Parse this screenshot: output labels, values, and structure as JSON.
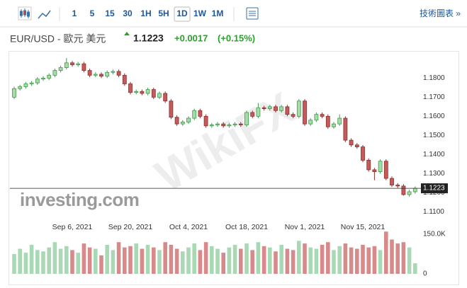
{
  "toolbar": {
    "intervals": [
      "1",
      "5",
      "15",
      "30",
      "1H",
      "5H",
      "1D",
      "1W",
      "1M"
    ],
    "selected": 6,
    "link": "技術圖表 »"
  },
  "header": {
    "pair": "EUR/USD - 歐元 美元",
    "price": "1.1223",
    "change": "+0.0017",
    "change_pct": "(+0.15%)"
  },
  "chart_data": {
    "type": "candlestick",
    "watermark": "investing.com",
    "watermark2": "WikiFX",
    "categories": [
      null,
      null,
      null,
      null,
      null,
      null,
      null,
      null,
      null,
      null,
      "Sep 6, 2021",
      null,
      null,
      null,
      null,
      null,
      null,
      null,
      null,
      null,
      "Sep 20, 2021",
      null,
      null,
      null,
      null,
      null,
      null,
      null,
      null,
      null,
      "Oct 4, 2021",
      null,
      null,
      null,
      null,
      null,
      null,
      null,
      null,
      null,
      "Oct 18, 2021",
      null,
      null,
      null,
      null,
      null,
      null,
      null,
      null,
      null,
      "Nov 1, 2021",
      null,
      null,
      null,
      null,
      null,
      null,
      null,
      null,
      null,
      "Nov 15, 2021",
      null,
      null,
      null,
      null,
      null,
      null,
      null,
      null,
      null
    ],
    "open": [
      1.17,
      1.1745,
      1.1755,
      1.177,
      1.1775,
      1.1795,
      1.18,
      1.1815,
      1.184,
      1.1855,
      1.188,
      1.187,
      1.1875,
      1.184,
      1.1815,
      1.182,
      1.181,
      1.183,
      1.1835,
      1.1815,
      1.177,
      1.1725,
      1.173,
      1.172,
      1.174,
      1.17,
      1.172,
      1.168,
      1.1595,
      1.156,
      1.157,
      1.159,
      1.163,
      1.16,
      1.155,
      1.1555,
      1.156,
      1.155,
      1.1555,
      1.156,
      1.1555,
      1.162,
      1.16,
      1.1645,
      1.164,
      1.165,
      1.163,
      1.165,
      1.161,
      1.16,
      1.168,
      1.156,
      1.158,
      1.161,
      1.16,
      1.1545,
      1.156,
      1.159,
      1.1475,
      1.145,
      1.144,
      1.137,
      1.132,
      1.131,
      1.1365,
      1.1275,
      1.124,
      1.1235,
      1.119,
      1.1205
    ],
    "high": [
      1.1755,
      1.1765,
      1.178,
      1.1785,
      1.1805,
      1.181,
      1.1825,
      1.185,
      1.1865,
      1.1905,
      1.189,
      1.1885,
      1.1885,
      1.185,
      1.183,
      1.183,
      1.184,
      1.1845,
      1.1845,
      1.1825,
      1.178,
      1.174,
      1.174,
      1.175,
      1.175,
      1.173,
      1.173,
      1.169,
      1.1605,
      1.158,
      1.16,
      1.164,
      1.164,
      1.161,
      1.1565,
      1.157,
      1.157,
      1.1565,
      1.157,
      1.157,
      1.163,
      1.163,
      1.167,
      1.1655,
      1.166,
      1.166,
      1.166,
      1.166,
      1.162,
      1.169,
      1.169,
      1.159,
      1.162,
      1.162,
      1.161,
      1.157,
      1.161,
      1.16,
      1.1485,
      1.146,
      1.145,
      1.138,
      1.133,
      1.1375,
      1.1375,
      1.1285,
      1.125,
      1.1245,
      1.1215,
      1.1233
    ],
    "low": [
      1.169,
      1.1735,
      1.1745,
      1.176,
      1.1765,
      1.1785,
      1.179,
      1.1805,
      1.183,
      1.1845,
      1.186,
      1.186,
      1.183,
      1.1805,
      1.1805,
      1.18,
      1.18,
      1.182,
      1.1805,
      1.176,
      1.1715,
      1.1715,
      1.171,
      1.171,
      1.169,
      1.169,
      1.167,
      1.1585,
      1.155,
      1.155,
      1.156,
      1.158,
      1.159,
      1.154,
      1.154,
      1.1545,
      1.154,
      1.154,
      1.1545,
      1.1545,
      1.1545,
      1.159,
      1.159,
      1.163,
      1.163,
      1.162,
      1.162,
      1.16,
      1.159,
      1.159,
      1.155,
      1.155,
      1.157,
      1.159,
      1.1535,
      1.1535,
      1.155,
      1.1465,
      1.144,
      1.143,
      1.136,
      1.131,
      1.1265,
      1.13,
      1.1265,
      1.123,
      1.1225,
      1.1185,
      1.118,
      1.1195
    ],
    "close": [
      1.1745,
      1.1755,
      1.177,
      1.1775,
      1.1795,
      1.18,
      1.1815,
      1.184,
      1.1855,
      1.188,
      1.187,
      1.1875,
      1.184,
      1.1815,
      1.182,
      1.181,
      1.183,
      1.1835,
      1.1815,
      1.177,
      1.1725,
      1.173,
      1.172,
      1.174,
      1.17,
      1.172,
      1.168,
      1.1595,
      1.156,
      1.157,
      1.159,
      1.163,
      1.16,
      1.155,
      1.1555,
      1.156,
      1.155,
      1.1555,
      1.156,
      1.1555,
      1.162,
      1.16,
      1.1645,
      1.164,
      1.165,
      1.163,
      1.165,
      1.161,
      1.16,
      1.168,
      1.156,
      1.158,
      1.161,
      1.16,
      1.1545,
      1.156,
      1.159,
      1.1475,
      1.145,
      1.144,
      1.137,
      1.132,
      1.131,
      1.1365,
      1.1275,
      1.124,
      1.1235,
      1.119,
      1.1205,
      1.1223
    ],
    "volume": [
      75000,
      95000,
      80000,
      110000,
      90000,
      85000,
      100000,
      120000,
      95000,
      105000,
      90000,
      80000,
      115000,
      100000,
      95000,
      70000,
      110000,
      90000,
      120000,
      100000,
      105000,
      115000,
      95000,
      110000,
      100000,
      90000,
      120000,
      110000,
      95000,
      85000,
      100000,
      115000,
      90000,
      120000,
      105000,
      95000,
      80000,
      100000,
      110000,
      95000,
      115000,
      90000,
      120000,
      105000,
      100000,
      85000,
      110000,
      95000,
      90000,
      125000,
      115000,
      100000,
      95000,
      110000,
      120000,
      90000,
      105000,
      115000,
      100000,
      95000,
      110000,
      100000,
      105000,
      90000,
      160000,
      130000,
      115000,
      120000,
      100000,
      40000
    ],
    "ylim": [
      1.109,
      1.192
    ],
    "yticks": [
      {
        "value": 1.11,
        "label": "1.1100"
      },
      {
        "value": 1.12,
        "label": "1.1200"
      },
      {
        "value": 1.13,
        "label": "1.1300"
      },
      {
        "value": 1.14,
        "label": "1.1400"
      },
      {
        "value": 1.15,
        "label": "1.1500"
      },
      {
        "value": 1.16,
        "label": "1.1600"
      },
      {
        "value": 1.17,
        "label": "1.1700"
      },
      {
        "value": 1.18,
        "label": "1.1800"
      }
    ],
    "volume_ylim": [
      0,
      150000
    ],
    "volume_yticks": [
      0,
      {
        "value": 150000,
        "label": "150.0K"
      }
    ],
    "up_color": "#3e9a4c",
    "up_fill": "#a7dca8",
    "down_color": "#8e2e2e",
    "down_fill": "#c45a5a",
    "up_volume_color": "#a9d8b4",
    "down_volume_color": "#d88a8a"
  }
}
